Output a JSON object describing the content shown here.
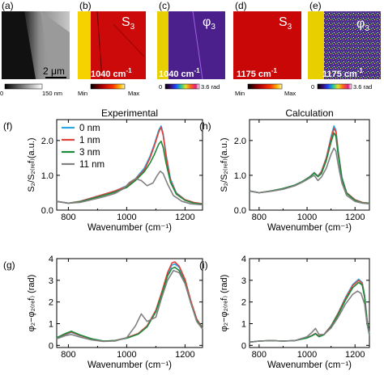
{
  "panels": {
    "a": {
      "letter": "(a)",
      "scalebar": "2 μm",
      "cb_min": "0",
      "cb_max": "150 nm"
    },
    "b": {
      "letter": "(b)",
      "sym": "S",
      "sub": "3",
      "wave": "1040 cm",
      "sup": "-1",
      "cb_min": "Min",
      "cb_max": "Max"
    },
    "c": {
      "letter": "(c)",
      "sym": "φ",
      "sub": "3",
      "wave": "1040 cm",
      "sup": "-1",
      "cb_min": "0",
      "cb_max": "3.6 rad"
    },
    "d": {
      "letter": "(d)",
      "sym": "S",
      "sub": "3",
      "wave": "1175 cm",
      "sup": "-1",
      "cb_min": "Min",
      "cb_max": "Max"
    },
    "e": {
      "letter": "(e)",
      "sym": "φ",
      "sub": "3",
      "wave": "1175 cm",
      "sup": "-1",
      "cb_min": "0",
      "cb_max": "3.6 rad"
    }
  },
  "colors": {
    "0 nm": "#29a9e0",
    "1 nm": "#e0403a",
    "3 nm": "#1c8a3c",
    "11 nm": "#808080"
  },
  "chart_data": [
    {
      "id": "f",
      "letter": "(f)",
      "type": "line",
      "title": "Experimental",
      "xlabel": "Wavenumber (cm⁻¹)",
      "ylabel": "S₂/S₂₍ᵣₑf₎(a.u.)",
      "xlim": [
        760,
        1260
      ],
      "ylim": [
        0,
        2.6
      ],
      "xticks": [
        800,
        1000,
        1200
      ],
      "yticks": [
        0.0,
        1.0,
        2.0
      ],
      "yticklabels": [
        "0.0",
        "1.0",
        "2.0"
      ],
      "legend": "top-left",
      "series": [
        {
          "name": "0 nm",
          "x": [
            760,
            800,
            840,
            880,
            920,
            960,
            1000,
            1030,
            1060,
            1080,
            1095,
            1110,
            1118,
            1125,
            1135,
            1150,
            1170,
            1200,
            1230,
            1260
          ],
          "values": [
            0.25,
            0.2,
            0.25,
            0.35,
            0.45,
            0.55,
            0.7,
            0.9,
            1.2,
            1.55,
            1.9,
            2.3,
            2.42,
            2.2,
            1.6,
            0.9,
            0.5,
            0.3,
            0.22,
            0.18
          ]
        },
        {
          "name": "1 nm",
          "x": [
            760,
            800,
            840,
            880,
            920,
            960,
            1000,
            1030,
            1060,
            1080,
            1095,
            1110,
            1118,
            1125,
            1135,
            1150,
            1170,
            1200,
            1230,
            1260
          ],
          "values": [
            0.25,
            0.2,
            0.25,
            0.35,
            0.45,
            0.55,
            0.68,
            0.88,
            1.15,
            1.5,
            1.85,
            2.25,
            2.38,
            2.15,
            1.55,
            0.85,
            0.48,
            0.3,
            0.22,
            0.18
          ]
        },
        {
          "name": "3 nm",
          "x": [
            760,
            800,
            840,
            880,
            920,
            960,
            1000,
            1030,
            1060,
            1080,
            1095,
            1110,
            1118,
            1125,
            1135,
            1150,
            1170,
            1200,
            1230,
            1260
          ],
          "values": [
            0.25,
            0.2,
            0.24,
            0.33,
            0.42,
            0.52,
            0.65,
            0.85,
            1.1,
            1.35,
            1.6,
            1.9,
            1.98,
            1.8,
            1.35,
            0.8,
            0.46,
            0.28,
            0.2,
            0.17
          ]
        },
        {
          "name": "11 nm",
          "x": [
            760,
            800,
            840,
            880,
            920,
            960,
            990,
            1010,
            1030,
            1050,
            1070,
            1090,
            1105,
            1115,
            1125,
            1140,
            1160,
            1190,
            1220,
            1260
          ],
          "values": [
            0.25,
            0.2,
            0.22,
            0.3,
            0.38,
            0.48,
            0.62,
            0.8,
            0.9,
            0.85,
            0.7,
            0.78,
            1.0,
            1.12,
            1.05,
            0.75,
            0.42,
            0.25,
            0.18,
            0.15
          ]
        }
      ]
    },
    {
      "id": "h",
      "letter": "(h)",
      "type": "line",
      "title": "Calculation",
      "xlabel": "Wavenumber (cm⁻¹)",
      "ylabel": "S₂/S₂₍ᵣₑf₎(a.u.)",
      "xlim": [
        760,
        1260
      ],
      "ylim": [
        0,
        2.6
      ],
      "xticks": [
        800,
        1000,
        1200
      ],
      "yticks": [
        0.0,
        1.0,
        2.0
      ],
      "yticklabels": [
        "0.0",
        "1.0",
        "2.0"
      ],
      "legend": "none",
      "series": [
        {
          "name": "0 nm",
          "x": [
            760,
            800,
            850,
            900,
            950,
            980,
            1010,
            1030,
            1045,
            1060,
            1080,
            1100,
            1112,
            1120,
            1130,
            1145,
            1165,
            1200,
            1230,
            1260
          ],
          "values": [
            0.55,
            0.5,
            0.55,
            0.62,
            0.72,
            0.82,
            0.95,
            1.08,
            0.98,
            1.12,
            1.5,
            2.1,
            2.42,
            2.3,
            1.7,
            0.95,
            0.5,
            0.3,
            0.22,
            0.2
          ]
        },
        {
          "name": "1 nm",
          "x": [
            760,
            800,
            850,
            900,
            950,
            980,
            1010,
            1030,
            1045,
            1060,
            1080,
            1100,
            1112,
            1120,
            1130,
            1145,
            1165,
            1200,
            1230,
            1260
          ],
          "values": [
            0.55,
            0.5,
            0.55,
            0.62,
            0.72,
            0.82,
            0.95,
            1.07,
            0.97,
            1.1,
            1.48,
            2.05,
            2.35,
            2.25,
            1.65,
            0.92,
            0.5,
            0.3,
            0.22,
            0.2
          ]
        },
        {
          "name": "3 nm",
          "x": [
            760,
            800,
            850,
            900,
            950,
            980,
            1010,
            1030,
            1045,
            1060,
            1080,
            1100,
            1112,
            1120,
            1130,
            1145,
            1165,
            1200,
            1230,
            1260
          ],
          "values": [
            0.55,
            0.5,
            0.55,
            0.62,
            0.72,
            0.82,
            0.95,
            1.06,
            0.96,
            1.05,
            1.42,
            1.95,
            2.22,
            2.12,
            1.58,
            0.9,
            0.48,
            0.28,
            0.21,
            0.2
          ]
        },
        {
          "name": "11 nm",
          "x": [
            760,
            800,
            850,
            900,
            950,
            980,
            1010,
            1030,
            1045,
            1060,
            1080,
            1100,
            1112,
            1120,
            1130,
            1145,
            1165,
            1200,
            1230,
            1260
          ],
          "values": [
            0.55,
            0.5,
            0.54,
            0.6,
            0.7,
            0.8,
            0.92,
            1.0,
            0.85,
            0.95,
            1.2,
            1.6,
            1.78,
            1.7,
            1.3,
            0.78,
            0.42,
            0.25,
            0.2,
            0.18
          ]
        }
      ]
    },
    {
      "id": "g",
      "letter": "(g)",
      "type": "line",
      "title": "",
      "xlabel": "Wavenumber (cm⁻¹)",
      "ylabel": "φ₂−φ₂₍ᵣₑf₎ (rad)",
      "xlim": [
        760,
        1260
      ],
      "ylim": [
        -0.1,
        4
      ],
      "xticks": [
        800,
        1000,
        1200
      ],
      "yticks": [
        0,
        1,
        2,
        3,
        4
      ],
      "yticklabels": [
        "0",
        "1",
        "2",
        "3",
        "4"
      ],
      "legend": "none",
      "series": [
        {
          "name": "0 nm",
          "x": [
            760,
            790,
            810,
            840,
            880,
            920,
            960,
            1000,
            1040,
            1070,
            1100,
            1120,
            1140,
            1155,
            1165,
            1180,
            1200,
            1220,
            1240,
            1260
          ],
          "values": [
            0.35,
            0.5,
            0.6,
            0.45,
            0.3,
            0.2,
            0.22,
            0.35,
            0.55,
            0.9,
            1.6,
            2.4,
            3.3,
            3.7,
            3.75,
            3.6,
            3.0,
            2.0,
            1.2,
            0.8
          ]
        },
        {
          "name": "1 nm",
          "x": [
            760,
            790,
            810,
            840,
            880,
            920,
            960,
            1000,
            1040,
            1070,
            1100,
            1120,
            1140,
            1155,
            1165,
            1180,
            1200,
            1220,
            1240,
            1260
          ],
          "values": [
            0.35,
            0.52,
            0.62,
            0.46,
            0.3,
            0.2,
            0.22,
            0.35,
            0.55,
            0.9,
            1.62,
            2.45,
            3.35,
            3.8,
            3.85,
            3.65,
            3.05,
            2.05,
            1.22,
            0.8
          ]
        },
        {
          "name": "3 nm",
          "x": [
            760,
            790,
            810,
            840,
            880,
            920,
            960,
            1000,
            1040,
            1070,
            1100,
            1120,
            1140,
            1155,
            1165,
            1180,
            1200,
            1220,
            1240,
            1260
          ],
          "values": [
            0.35,
            0.55,
            0.65,
            0.48,
            0.3,
            0.2,
            0.22,
            0.33,
            0.52,
            0.85,
            1.55,
            2.35,
            3.2,
            3.55,
            3.6,
            3.45,
            2.9,
            1.95,
            1.15,
            0.78
          ]
        },
        {
          "name": "11 nm",
          "x": [
            760,
            790,
            810,
            840,
            880,
            920,
            960,
            1000,
            1030,
            1050,
            1070,
            1100,
            1120,
            1140,
            1160,
            1180,
            1200,
            1220,
            1240,
            1260
          ],
          "values": [
            0.3,
            0.45,
            0.5,
            0.38,
            0.25,
            0.18,
            0.2,
            0.35,
            0.9,
            1.45,
            1.1,
            1.3,
            2.2,
            3.0,
            3.45,
            3.35,
            2.85,
            1.95,
            1.1,
            0.75
          ]
        }
      ]
    },
    {
      "id": "i",
      "letter": "(i)",
      "type": "line",
      "title": "",
      "xlabel": "Wavenumber (cm⁻¹)",
      "ylabel": "φ₂−φ₂₍ᵣₑf₎ (rad)",
      "xlim": [
        760,
        1260
      ],
      "ylim": [
        -0.1,
        4
      ],
      "xticks": [
        800,
        1000,
        1200
      ],
      "yticks": [
        0,
        1,
        2,
        3,
        4
      ],
      "yticklabels": [
        "0",
        "1",
        "2",
        "3",
        "4"
      ],
      "legend": "none",
      "series": [
        {
          "name": "0 nm",
          "x": [
            760,
            800,
            850,
            900,
            950,
            1000,
            1020,
            1035,
            1050,
            1070,
            1100,
            1130,
            1160,
            1190,
            1215,
            1230,
            1240,
            1250,
            1260
          ],
          "values": [
            0.15,
            0.2,
            0.22,
            0.2,
            0.22,
            0.35,
            0.45,
            0.55,
            0.42,
            0.5,
            0.9,
            1.5,
            2.2,
            2.8,
            3.05,
            2.9,
            2.3,
            1.2,
            0.5
          ]
        },
        {
          "name": "1 nm",
          "x": [
            760,
            800,
            850,
            900,
            950,
            1000,
            1020,
            1035,
            1050,
            1070,
            1100,
            1130,
            1160,
            1190,
            1215,
            1230,
            1240,
            1250,
            1260
          ],
          "values": [
            0.15,
            0.2,
            0.22,
            0.2,
            0.22,
            0.35,
            0.45,
            0.55,
            0.42,
            0.5,
            0.88,
            1.48,
            2.15,
            2.75,
            3.0,
            2.85,
            2.25,
            1.2,
            0.5
          ]
        },
        {
          "name": "3 nm",
          "x": [
            760,
            800,
            850,
            900,
            950,
            1000,
            1020,
            1035,
            1050,
            1070,
            1100,
            1130,
            1160,
            1190,
            1215,
            1230,
            1240,
            1250,
            1260
          ],
          "values": [
            0.15,
            0.2,
            0.22,
            0.2,
            0.22,
            0.34,
            0.44,
            0.53,
            0.4,
            0.48,
            0.85,
            1.42,
            2.08,
            2.65,
            2.9,
            2.78,
            2.2,
            1.18,
            0.5
          ]
        },
        {
          "name": "11 nm",
          "x": [
            760,
            800,
            850,
            900,
            950,
            1000,
            1020,
            1035,
            1050,
            1070,
            1100,
            1130,
            1160,
            1190,
            1210,
            1225,
            1240,
            1250,
            1260
          ],
          "values": [
            0.15,
            0.2,
            0.22,
            0.2,
            0.22,
            0.4,
            0.6,
            0.78,
            0.5,
            0.5,
            0.8,
            1.3,
            1.9,
            2.35,
            2.5,
            2.4,
            1.9,
            1.0,
            0.45
          ]
        }
      ]
    }
  ]
}
